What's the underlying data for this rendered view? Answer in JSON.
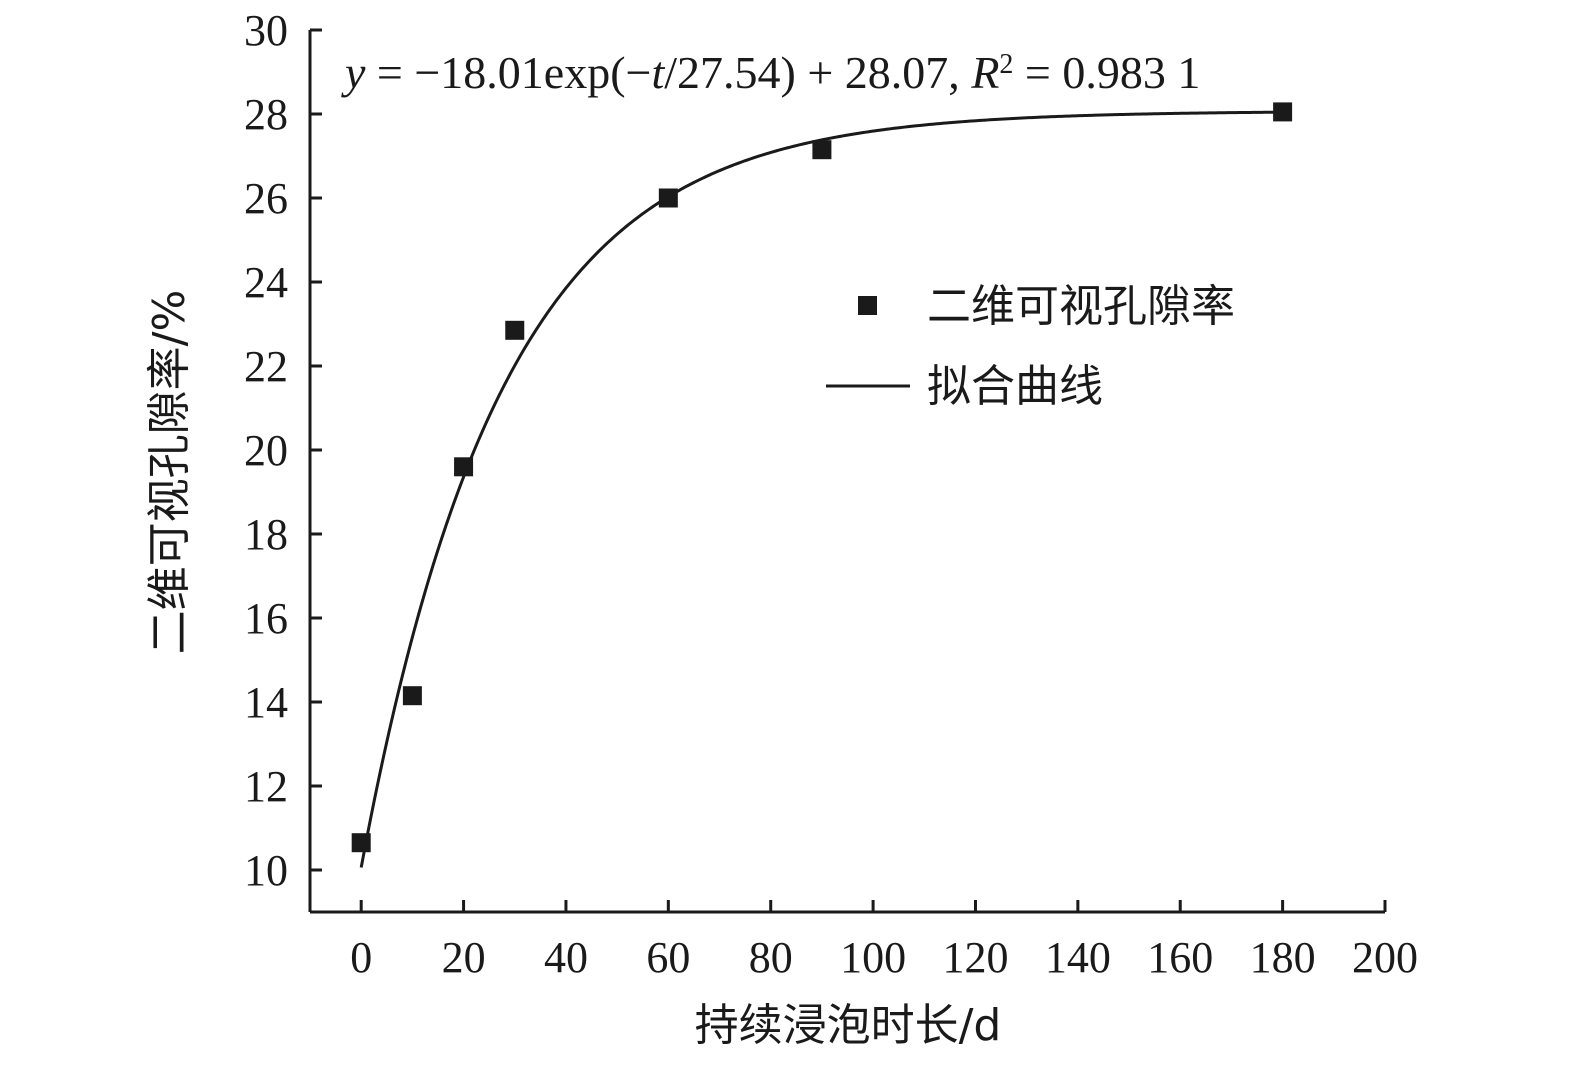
{
  "chart_data": {
    "type": "scatter",
    "title": "",
    "xlabel": "持续浸泡时长/d",
    "ylabel": "二维可视孔隙率/%",
    "xlim": [
      -10,
      200
    ],
    "ylim": [
      9,
      30
    ],
    "xticks": [
      0,
      20,
      40,
      60,
      80,
      100,
      120,
      140,
      160,
      180,
      200
    ],
    "yticks": [
      10,
      12,
      14,
      16,
      18,
      20,
      22,
      24,
      26,
      28,
      30
    ],
    "grid": false,
    "legend_position": "right",
    "series": [
      {
        "name": "二维可视孔隙率",
        "kind": "points",
        "marker": "square",
        "color": "#1a1a1a",
        "x": [
          0,
          10,
          20,
          30,
          60,
          90,
          180
        ],
        "y": [
          10.65,
          14.15,
          19.6,
          22.85,
          26.0,
          27.15,
          28.05
        ]
      },
      {
        "name": "拟合曲线",
        "kind": "fit",
        "color": "#1a1a1a",
        "equation": {
          "lhs": "y",
          "eq": " = −18.01exp(−",
          "var": "t",
          "tail": "/27.54) + 28.07, ",
          "r": "R",
          "sup": "2",
          "rval": " = 0.983 1"
        },
        "params": {
          "a": -18.01,
          "tau": 27.54,
          "c": 28.07
        },
        "t_range": [
          0,
          180
        ]
      }
    ]
  }
}
